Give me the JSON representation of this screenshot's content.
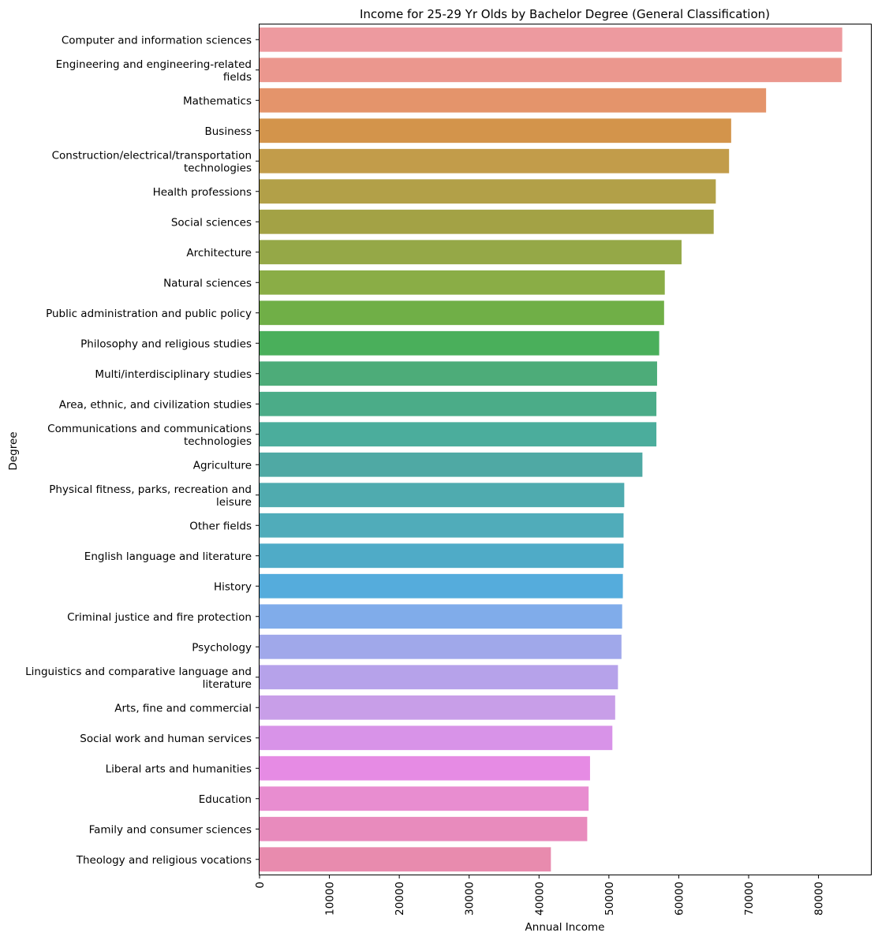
{
  "chart_data": {
    "type": "bar",
    "orientation": "horizontal",
    "title": "Income for 25-29 Yr Olds by Bachelor Degree (General Classification)",
    "xlabel": "Annual Income",
    "ylabel": "Degree",
    "xlim": [
      0,
      87500
    ],
    "xticks": [
      0,
      10000,
      20000,
      30000,
      40000,
      50000,
      60000,
      70000,
      80000
    ],
    "xtick_labels": [
      "0",
      "10000",
      "20000",
      "30000",
      "40000",
      "50000",
      "60000",
      "70000",
      "80000"
    ],
    "grid": false,
    "legend": "none",
    "categories": [
      [
        "Computer and information sciences"
      ],
      [
        "Engineering and engineering-related",
        "fields"
      ],
      [
        "Mathematics"
      ],
      [
        "Business"
      ],
      [
        "Construction/electrical/transportation",
        "technologies"
      ],
      [
        "Health professions"
      ],
      [
        "Social sciences"
      ],
      [
        "Architecture"
      ],
      [
        "Natural sciences"
      ],
      [
        "Public administration and public policy"
      ],
      [
        "Philosophy and religious studies"
      ],
      [
        "Multi/interdisciplinary studies"
      ],
      [
        "Area, ethnic, and civilization studies"
      ],
      [
        "Communications and communications",
        "technologies"
      ],
      [
        "Agriculture"
      ],
      [
        "Physical fitness, parks, recreation and",
        "leisure"
      ],
      [
        "Other fields"
      ],
      [
        "English language and literature"
      ],
      [
        "History"
      ],
      [
        "Criminal justice and fire protection"
      ],
      [
        "Psychology"
      ],
      [
        "Linguistics and comparative language and",
        "literature"
      ],
      [
        "Arts, fine and commercial"
      ],
      [
        "Social work and human services"
      ],
      [
        "Liberal arts and humanities"
      ],
      [
        "Education"
      ],
      [
        "Family and consumer sciences"
      ],
      [
        "Theology and religious vocations"
      ]
    ],
    "values": [
      83400,
      83300,
      72500,
      67500,
      67200,
      65300,
      65000,
      60400,
      58000,
      57900,
      57200,
      56900,
      56800,
      56800,
      54800,
      52200,
      52100,
      52100,
      52000,
      51900,
      51800,
      51300,
      50900,
      50500,
      47300,
      47100,
      46900,
      41700
    ],
    "colors": [
      "#ed9a9f",
      "#eb978e",
      "#e4946b",
      "#d3944b",
      "#c29c4a",
      "#b2a048",
      "#a3a245",
      "#95a847",
      "#8aad46",
      "#70af47",
      "#4aaf5b",
      "#4dac79",
      "#4bac88",
      "#4bad9c",
      "#4fa9a4",
      "#4fabaf",
      "#50acba",
      "#4fabc7",
      "#55acdc",
      "#80acea",
      "#a0a8ea",
      "#b6a2ea",
      "#c89ee8",
      "#d893e8",
      "#e68be4",
      "#e88dd0",
      "#e88bbd",
      "#e88bae"
    ]
  }
}
